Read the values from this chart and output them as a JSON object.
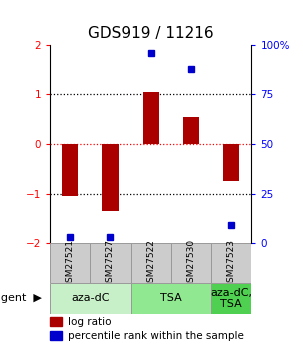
{
  "title": "GDS919 / 11216",
  "samples": [
    "GSM27521",
    "GSM27527",
    "GSM27522",
    "GSM27530",
    "GSM27523"
  ],
  "log_ratios": [
    -1.05,
    -1.35,
    1.05,
    0.55,
    -0.75
  ],
  "percentile_ranks": [
    3.0,
    3.0,
    96.0,
    88.0,
    9.0
  ],
  "agent_boxes": [
    {
      "label": "aza-dC",
      "start": 0,
      "end": 1,
      "color": "#c8f0c8"
    },
    {
      "label": "TSA",
      "start": 2,
      "end": 3,
      "color": "#90e890"
    },
    {
      "label": "aza-dC,\nTSA",
      "start": 4,
      "end": 4,
      "color": "#50d050"
    }
  ],
  "bar_color": "#aa0000",
  "dot_color": "#0000cc",
  "ylim": [
    -2,
    2
  ],
  "y2lim": [
    0,
    100
  ],
  "y_ticks": [
    -2,
    -1,
    0,
    1,
    2
  ],
  "y2_ticks": [
    0,
    25,
    50,
    75,
    100
  ],
  "y2_tick_labels": [
    "0",
    "25",
    "50",
    "75",
    "100%"
  ],
  "dotted_lines_black": [
    -1,
    1
  ],
  "dotted_line_red": 0,
  "bar_width": 0.4,
  "sample_box_color": "#cccccc",
  "sample_box_border": "#999999",
  "title_fontsize": 11,
  "tick_fontsize": 7.5,
  "sample_fontsize": 6.5,
  "agent_fontsize": 8,
  "legend_fontsize": 7.5
}
